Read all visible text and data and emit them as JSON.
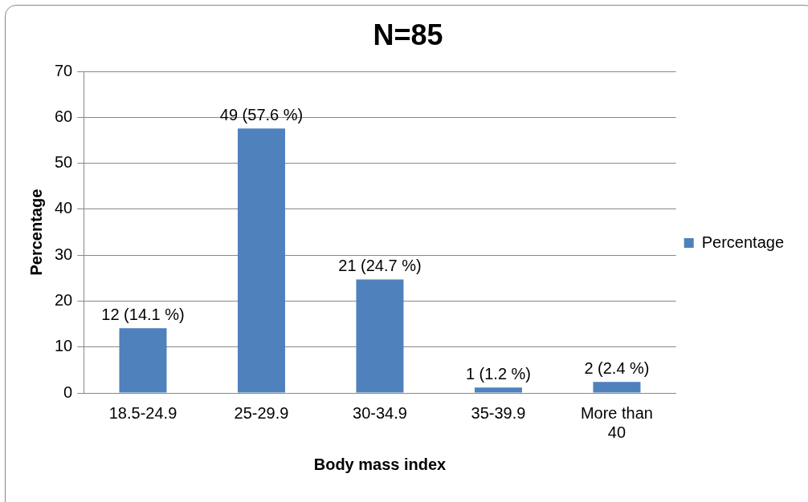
{
  "chart_data": {
    "type": "bar",
    "title": "N=85",
    "xlabel": "Body mass index",
    "ylabel": "Percentage",
    "categories": [
      "18.5-24.9",
      "25-29.9",
      "30-34.9",
      "35-39.9",
      "More than 40"
    ],
    "series": [
      {
        "name": "Percentage",
        "color": "#4f81bd",
        "values": [
          14.1,
          57.6,
          24.7,
          1.2,
          2.4
        ],
        "value_labels": [
          "12 (14.1 %)",
          "49 (57.6 %)",
          "21 (24.7 %)",
          "1 (1.2 %)",
          "2 (2.4 %)"
        ]
      }
    ],
    "ylim": [
      0,
      70
    ],
    "yticks": [
      0,
      10,
      20,
      30,
      40,
      50,
      60,
      70
    ],
    "grid": "y",
    "legend": "right"
  }
}
